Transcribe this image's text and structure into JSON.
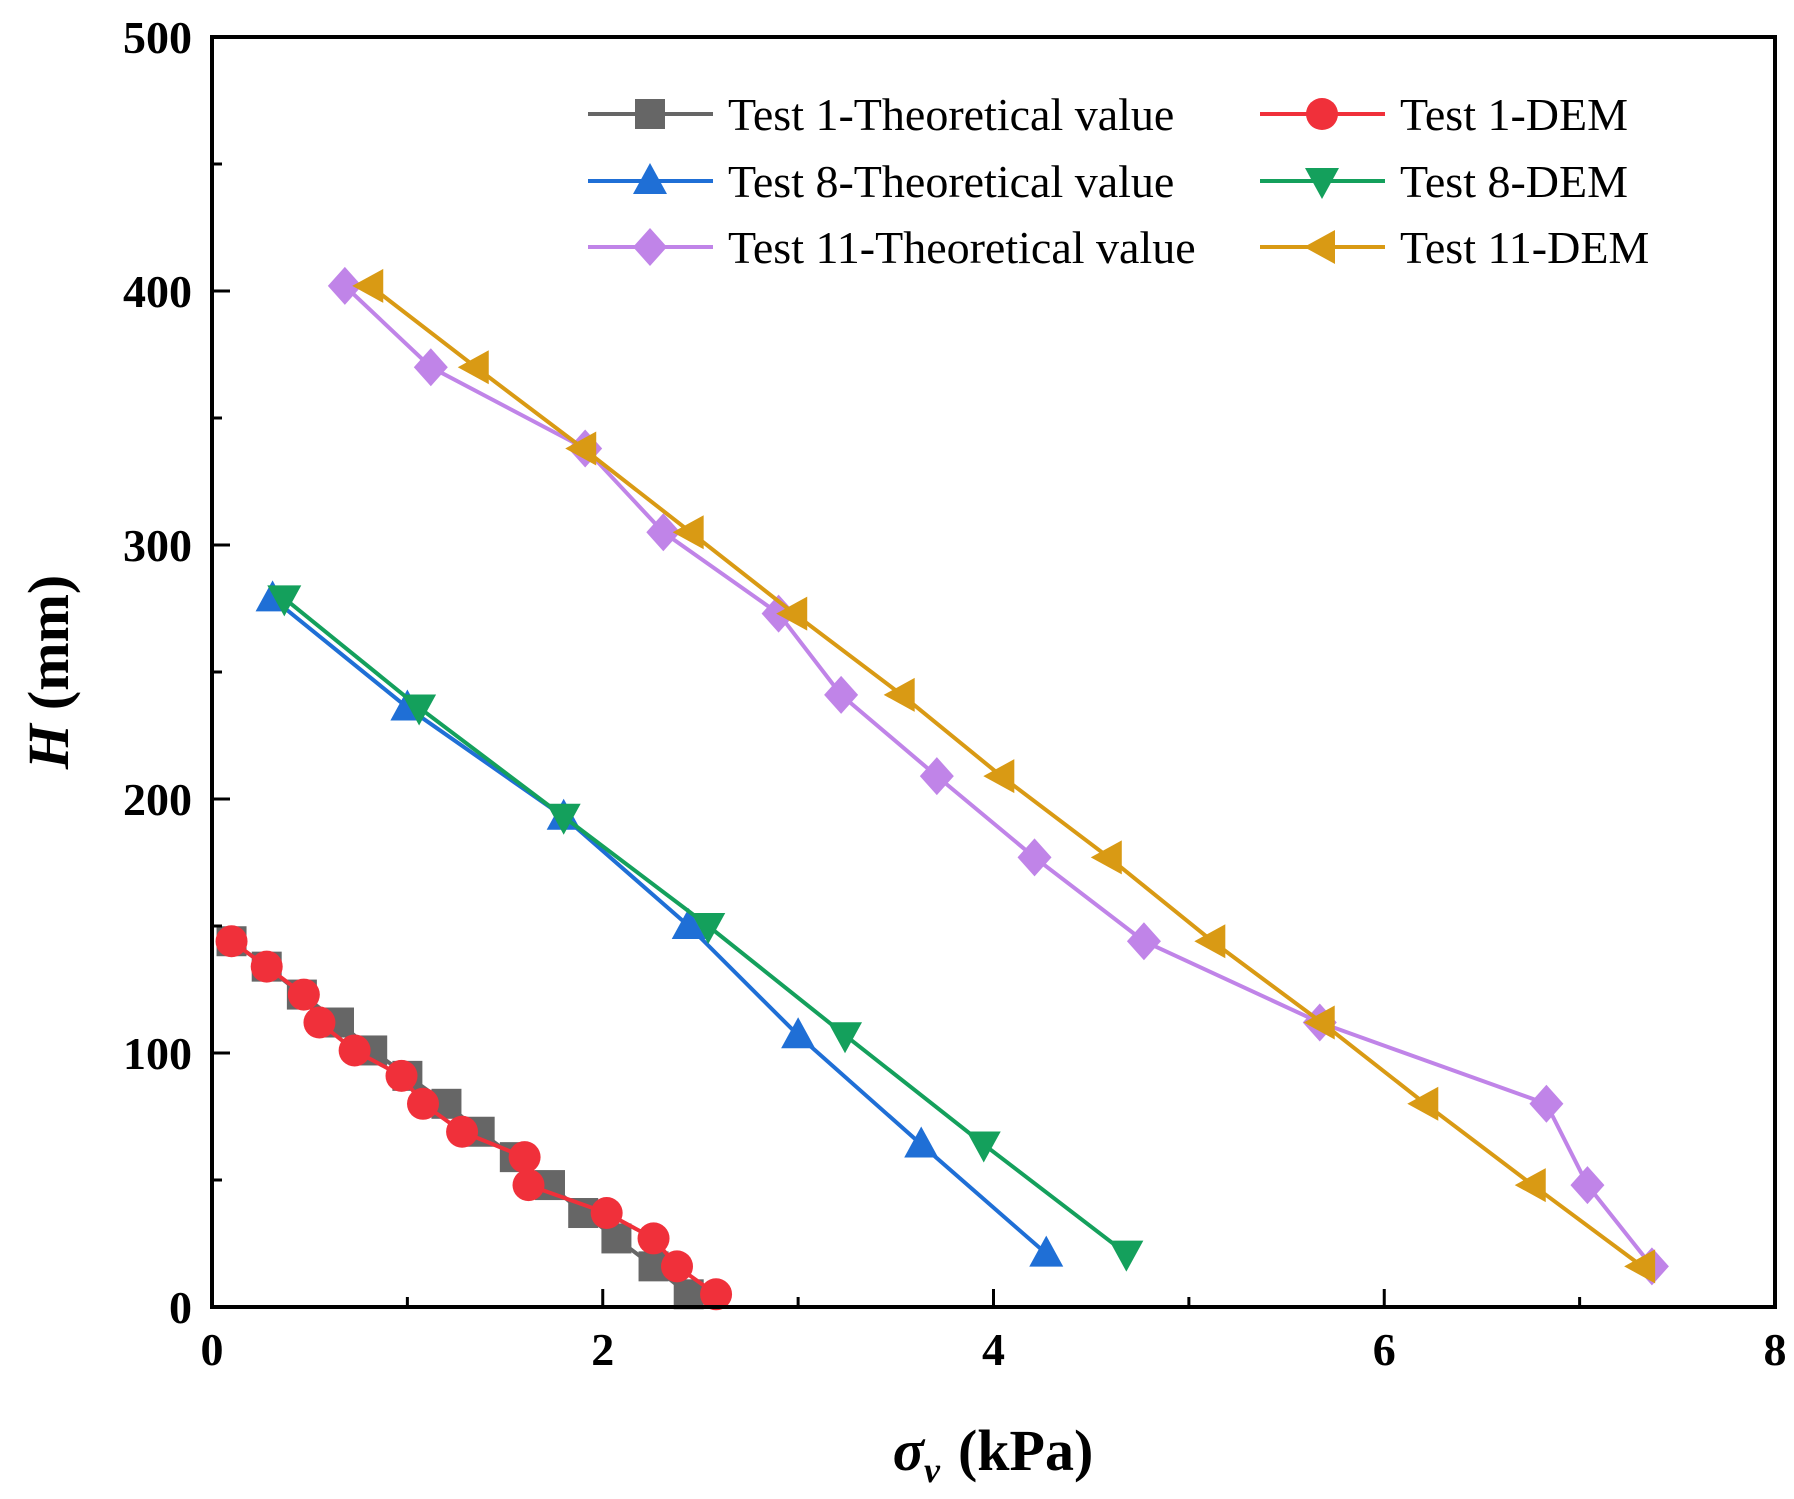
{
  "chart_data": {
    "type": "line",
    "xlabel": {
      "symbol": "σ",
      "subscript": "v",
      "unit": "(kPa)"
    },
    "ylabel": {
      "symbol": "H",
      "unit": "(mm)"
    },
    "xlim": [
      0,
      8
    ],
    "ylim": [
      0,
      500
    ],
    "x_ticks": [
      "0",
      "2",
      "4",
      "6",
      "8"
    ],
    "y_ticks": [
      "0",
      "100",
      "200",
      "300",
      "400",
      "500"
    ],
    "grid": false,
    "legend_position": "top-right",
    "series": [
      {
        "name": "Test 1-Theoretical value",
        "color": "#666666",
        "marker": "square",
        "x": [
          2.44,
          2.26,
          2.07,
          1.9,
          1.73,
          1.55,
          1.37,
          1.2,
          1.0,
          0.82,
          0.65,
          0.46,
          0.28,
          0.1
        ],
        "y": [
          5,
          16,
          27,
          37,
          48,
          59,
          69,
          80,
          91,
          101,
          112,
          123,
          134,
          144
        ]
      },
      {
        "name": "Test 1-DEM",
        "color": "#f0303a",
        "marker": "circle",
        "x": [
          2.58,
          2.38,
          2.26,
          2.02,
          1.62,
          1.6,
          1.28,
          1.08,
          0.97,
          0.73,
          0.55,
          0.47,
          0.28,
          0.1
        ],
        "y": [
          5,
          16,
          27,
          37,
          48,
          59,
          69,
          80,
          91,
          101,
          112,
          123,
          134,
          144
        ]
      },
      {
        "name": "Test 8-Theoretical value",
        "color": "#1f6fd6",
        "marker": "triangle-up",
        "x": [
          4.27,
          3.63,
          3.0,
          2.44,
          1.8,
          1.0,
          0.31
        ],
        "y": [
          21,
          64,
          107,
          150,
          193,
          236,
          279
        ]
      },
      {
        "name": "Test 8-DEM",
        "color": "#14a05c",
        "marker": "triangle-down",
        "x": [
          4.68,
          3.95,
          3.24,
          2.54,
          1.8,
          1.06,
          0.37
        ],
        "y": [
          21,
          64,
          107,
          150,
          193,
          236,
          279
        ]
      },
      {
        "name": "Test 11-Theoretical value",
        "color": "#c084e8",
        "marker": "diamond",
        "x": [
          7.37,
          7.04,
          6.83,
          5.67,
          4.77,
          4.21,
          3.71,
          3.22,
          2.9,
          2.31,
          1.91,
          1.12,
          0.68
        ],
        "y": [
          16,
          48,
          80,
          112,
          144,
          177,
          209,
          241,
          273,
          305,
          338,
          370,
          402
        ],
        "_note": null
      },
      {
        "name": "Test 11-DEM",
        "color": "#d99a14",
        "marker": "triangle-left",
        "x": [
          7.32,
          6.76,
          6.21,
          5.68,
          5.12,
          4.59,
          4.04,
          3.53,
          2.98,
          2.45,
          1.9,
          1.35,
          0.81
        ],
        "y": [
          16,
          48,
          80,
          112,
          144,
          177,
          209,
          241,
          273,
          305,
          338,
          370,
          402
        ]
      }
    ]
  }
}
